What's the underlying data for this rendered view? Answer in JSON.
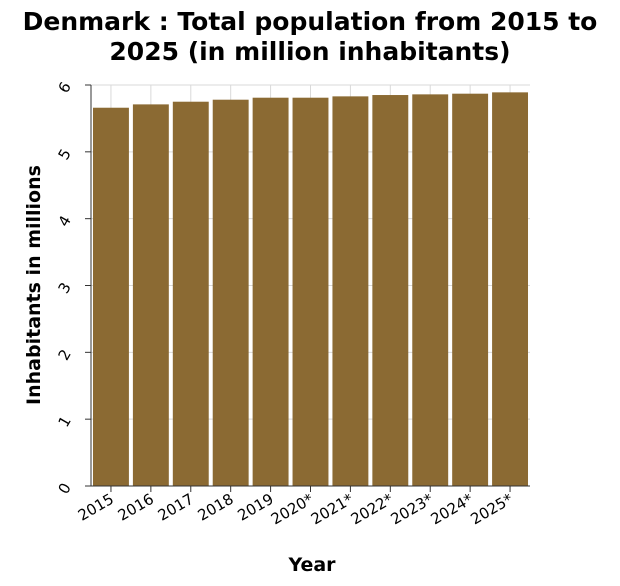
{
  "chart_data": {
    "type": "bar",
    "title_lines": [
      "Denmark : Total population from 2015 to",
      "2025 (in million inhabitants)"
    ],
    "xlabel": "Year",
    "ylabel": "Inhabitants in millions",
    "categories": [
      "2015",
      "2016",
      "2017",
      "2018",
      "2019",
      "2020*",
      "2021*",
      "2022*",
      "2023*",
      "2024*",
      "2025*"
    ],
    "values": [
      5.66,
      5.71,
      5.75,
      5.78,
      5.81,
      5.81,
      5.83,
      5.85,
      5.86,
      5.87,
      5.89
    ],
    "ylim": [
      0,
      6
    ],
    "yticks": [
      "0",
      "1",
      "2",
      "3",
      "4",
      "5",
      "6"
    ],
    "grid": true,
    "bar_color": "#8b6a33"
  }
}
